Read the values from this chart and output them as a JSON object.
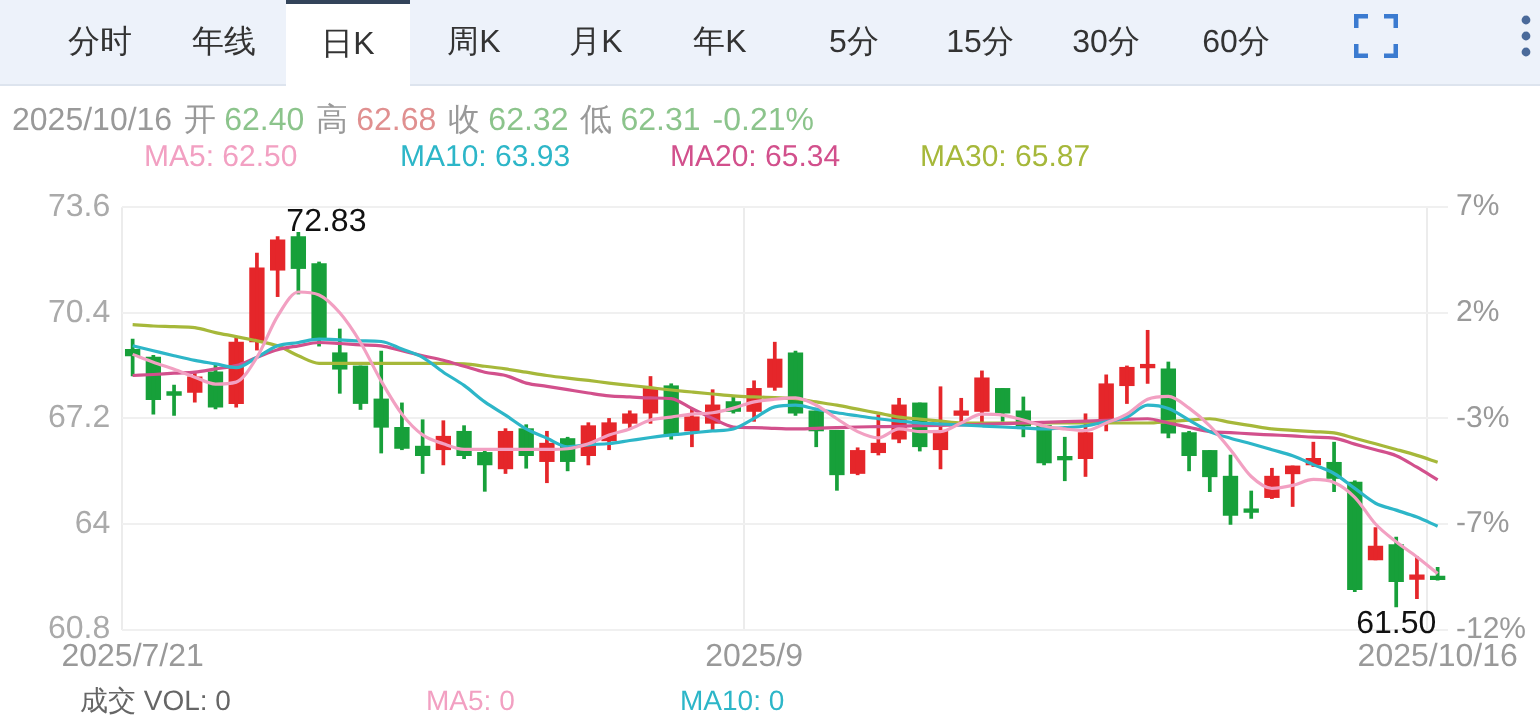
{
  "chart_data": {
    "type": "candlestick",
    "categories": [
      "2025/7/21",
      null,
      null,
      null,
      null,
      null,
      null,
      null,
      null,
      null,
      null,
      null,
      null,
      null,
      null,
      null,
      null,
      null,
      null,
      null,
      null,
      null,
      null,
      null,
      null,
      null,
      null,
      null,
      null,
      null,
      "2025/9",
      null,
      null,
      null,
      null,
      null,
      null,
      null,
      null,
      null,
      null,
      null,
      null,
      null,
      null,
      null,
      null,
      null,
      null,
      null,
      null,
      null,
      null,
      null,
      null,
      null,
      null,
      null,
      null,
      null,
      null,
      null,
      null,
      "2025/10/16"
    ],
    "ohlc": [
      [
        69.28,
        69.59,
        68.5,
        69.1
      ],
      [
        69.05,
        69.1,
        67.34,
        67.78
      ],
      [
        68.0,
        68.2,
        67.3,
        67.91
      ],
      [
        68.0,
        68.6,
        67.7,
        68.45
      ],
      [
        68.6,
        68.86,
        67.5,
        67.55
      ],
      [
        67.66,
        69.64,
        67.55,
        69.5
      ],
      [
        69.53,
        72.2,
        69.28,
        71.75
      ],
      [
        71.7,
        72.7,
        70.9,
        72.6
      ],
      [
        72.7,
        72.83,
        70.98,
        71.75
      ],
      [
        71.88,
        71.93,
        69.4,
        69.6
      ],
      [
        69.18,
        69.9,
        67.97,
        68.7
      ],
      [
        68.78,
        68.78,
        67.48,
        67.66
      ],
      [
        67.78,
        69.23,
        66.16,
        66.94
      ],
      [
        66.92,
        67.66,
        66.26,
        66.3
      ],
      [
        66.35,
        67.15,
        65.54,
        66.08
      ],
      [
        66.26,
        67.12,
        65.8,
        66.65
      ],
      [
        66.8,
        66.97,
        65.99,
        66.08
      ],
      [
        66.16,
        66.22,
        65.0,
        65.8
      ],
      [
        65.68,
        66.88,
        65.54,
        66.8
      ],
      [
        66.88,
        67.0,
        65.7,
        66.08
      ],
      [
        65.9,
        66.8,
        65.26,
        66.44
      ],
      [
        66.58,
        66.62,
        65.62,
        65.9
      ],
      [
        66.08,
        67.06,
        65.8,
        66.97
      ],
      [
        66.53,
        67.19,
        66.26,
        67.06
      ],
      [
        67.06,
        67.42,
        66.88,
        67.33
      ],
      [
        67.37,
        68.46,
        67.06,
        68.1
      ],
      [
        68.18,
        68.24,
        66.58,
        66.7
      ],
      [
        66.83,
        67.48,
        66.35,
        67.24
      ],
      [
        67.06,
        68.06,
        66.83,
        67.6
      ],
      [
        67.7,
        67.88,
        67.37,
        67.42
      ],
      [
        67.42,
        68.33,
        67.12,
        68.1
      ],
      [
        68.15,
        69.5,
        68.06,
        68.99
      ],
      [
        69.18,
        69.23,
        67.3,
        67.37
      ],
      [
        67.42,
        67.42,
        66.35,
        66.83
      ],
      [
        66.83,
        66.83,
        65.03,
        65.5
      ],
      [
        65.54,
        66.3,
        65.5,
        66.22
      ],
      [
        66.17,
        67.3,
        66.1,
        66.44
      ],
      [
        66.58,
        67.8,
        66.47,
        67.6
      ],
      [
        67.66,
        67.66,
        66.22,
        66.35
      ],
      [
        66.26,
        68.15,
        65.68,
        66.83
      ],
      [
        67.3,
        67.8,
        67.06,
        67.42
      ],
      [
        67.42,
        68.63,
        66.98,
        68.42
      ],
      [
        68.1,
        68.1,
        67.12,
        67.37
      ],
      [
        67.42,
        67.84,
        66.65,
        66.98
      ],
      [
        66.98,
        66.98,
        65.8,
        65.86
      ],
      [
        66.04,
        66.62,
        65.32,
        65.95
      ],
      [
        65.99,
        67.33,
        65.45,
        66.76
      ],
      [
        67.06,
        68.51,
        66.83,
        68.24
      ],
      [
        68.2,
        68.78,
        67.66,
        68.74
      ],
      [
        68.74,
        69.86,
        68.27,
        68.8
      ],
      [
        68.69,
        68.9,
        66.62,
        66.76
      ],
      [
        66.76,
        66.8,
        65.62,
        66.08
      ],
      [
        66.22,
        66.22,
        64.99,
        65.44
      ],
      [
        65.44,
        66.08,
        64.0,
        64.27
      ],
      [
        64.45,
        64.99,
        64.18,
        64.36
      ],
      [
        64.81,
        65.68,
        64.78,
        65.44
      ],
      [
        65.53,
        65.75,
        64.54,
        65.75
      ],
      [
        65.8,
        66.47,
        65.75,
        65.98
      ],
      [
        65.86,
        66.47,
        64.99,
        65.39
      ],
      [
        65.26,
        65.3,
        61.96,
        62.02
      ],
      [
        62.92,
        63.88,
        62.92,
        63.32
      ],
      [
        63.37,
        63.59,
        61.5,
        62.26
      ],
      [
        62.33,
        63.0,
        61.75,
        62.45
      ],
      [
        62.4,
        62.68,
        62.31,
        62.32
      ]
    ],
    "colors": [
      "#17a03a",
      "#17a03a",
      "#17a03a",
      "#e5262a",
      "#17a03a",
      "#e5262a",
      "#e5262a",
      "#e5262a",
      "#17a03a",
      "#17a03a",
      "#17a03a",
      "#17a03a",
      "#17a03a",
      "#17a03a",
      "#17a03a",
      "#e5262a",
      "#17a03a",
      "#17a03a",
      "#e5262a",
      "#17a03a",
      "#e5262a",
      "#17a03a",
      "#e5262a",
      "#e5262a",
      "#e5262a",
      "#e5262a",
      "#17a03a",
      "#e5262a",
      "#e5262a",
      "#17a03a",
      "#e5262a",
      "#e5262a",
      "#17a03a",
      "#17a03a",
      "#17a03a",
      "#e5262a",
      "#e5262a",
      "#e5262a",
      "#17a03a",
      "#e5262a",
      "#e5262a",
      "#e5262a",
      "#17a03a",
      "#17a03a",
      "#17a03a",
      "#17a03a",
      "#e5262a",
      "#e5262a",
      "#e5262a",
      "#e5262a",
      "#17a03a",
      "#17a03a",
      "#17a03a",
      "#17a03a",
      "#17a03a",
      "#e5262a",
      "#e5262a",
      "#e5262a",
      "#17a03a",
      "#17a03a",
      "#e5262a",
      "#17a03a",
      "#e5262a",
      "#17a03a"
    ],
    "series": [
      {
        "type": "line",
        "name": "MA5: 62.50",
        "color": "#f2a0c2",
        "values": [
          69.14,
          68.9,
          68.69,
          68.45,
          68.24,
          68.3,
          69.05,
          70.3,
          71.03,
          70.94,
          70.4,
          69.5,
          68.33,
          67.33,
          66.7,
          66.43,
          66.26,
          66.26,
          66.26,
          66.26,
          66.26,
          66.28,
          66.43,
          66.7,
          66.88,
          67.15,
          67.24,
          67.33,
          67.37,
          67.51,
          67.7,
          67.78,
          67.82,
          67.6,
          67.19,
          66.8,
          66.61,
          66.88,
          66.8,
          66.8,
          67.06,
          67.33,
          67.3,
          67.15,
          66.97,
          66.88,
          66.83,
          67.06,
          67.33,
          67.78,
          67.87,
          67.51,
          66.97,
          66.25,
          65.44,
          65.08,
          65.17,
          65.35,
          65.26,
          64.81,
          64.0,
          63.46,
          63.0,
          62.5
        ]
      },
      {
        "type": "line",
        "name": "MA10: 63.93",
        "color": "#2db6c8",
        "values": [
          69.4,
          69.25,
          69.1,
          68.96,
          68.85,
          68.74,
          69.05,
          69.4,
          69.5,
          69.6,
          69.58,
          69.55,
          69.53,
          69.3,
          69.05,
          68.6,
          68.2,
          67.7,
          67.3,
          66.88,
          66.6,
          66.34,
          66.4,
          66.44,
          66.53,
          66.62,
          66.7,
          66.76,
          66.82,
          66.88,
          67.2,
          67.55,
          67.6,
          67.48,
          67.37,
          67.28,
          67.19,
          67.12,
          67.06,
          67.03,
          67.0,
          66.97,
          66.94,
          66.91,
          66.88,
          66.92,
          66.97,
          67.1,
          67.24,
          67.6,
          67.5,
          67.15,
          66.8,
          66.6,
          66.43,
          66.25,
          66.07,
          65.8,
          65.53,
          65.08,
          64.63,
          64.42,
          64.21,
          63.93
        ]
      },
      {
        "type": "line",
        "name": "MA20: 65.34",
        "color": "#d2508c",
        "values": [
          68.5,
          68.53,
          68.57,
          68.6,
          68.7,
          68.8,
          69.05,
          69.28,
          69.4,
          69.5,
          69.47,
          69.43,
          69.4,
          69.25,
          69.1,
          68.96,
          68.78,
          68.6,
          68.5,
          68.27,
          68.17,
          68.07,
          67.97,
          67.88,
          67.85,
          67.82,
          67.8,
          67.5,
          67.2,
          66.94,
          66.92,
          66.9,
          66.88,
          66.9,
          66.92,
          66.94,
          66.95,
          66.96,
          66.98,
          66.99,
          67.0,
          67.02,
          67.04,
          67.06,
          67.08,
          67.1,
          67.12,
          67.14,
          67.17,
          67.19,
          67.06,
          66.93,
          66.8,
          66.77,
          66.73,
          66.7,
          66.67,
          66.63,
          66.6,
          66.42,
          66.25,
          66.07,
          65.72,
          65.34
        ]
      },
      {
        "type": "line",
        "name": "MA30: 65.87",
        "color": "#a6b83a",
        "values": [
          70.04,
          70.0,
          69.98,
          69.95,
          69.8,
          69.68,
          69.55,
          69.4,
          69.1,
          68.87,
          68.87,
          68.87,
          68.87,
          68.87,
          68.87,
          68.87,
          68.85,
          68.78,
          68.7,
          68.6,
          68.5,
          68.42,
          68.35,
          68.27,
          68.2,
          68.13,
          68.06,
          68.0,
          67.94,
          67.88,
          67.85,
          67.83,
          67.8,
          67.7,
          67.6,
          67.48,
          67.36,
          67.24,
          67.18,
          67.12,
          67.06,
          67.06,
          67.06,
          67.06,
          67.06,
          67.06,
          67.06,
          67.06,
          67.06,
          67.06,
          67.1,
          67.15,
          67.19,
          67.08,
          66.98,
          66.88,
          66.84,
          66.8,
          66.76,
          66.6,
          66.43,
          66.26,
          66.08,
          65.87
        ]
      }
    ],
    "ylim": [
      60.8,
      73.6
    ],
    "yticks": [
      60.8,
      64,
      67.2,
      70.4,
      73.6
    ],
    "y2lim": [
      -11.88,
      6.67
    ],
    "y2ticks": [
      {
        "value": -11.88,
        "label": "-12%"
      },
      {
        "value": -7.25,
        "label": "-7%"
      },
      {
        "value": -2.61,
        "label": "-3%"
      },
      {
        "value": 2.03,
        "label": "2%"
      },
      {
        "value": 6.67,
        "label": "7%"
      }
    ],
    "grid": true,
    "legend": "top left",
    "annotations": [
      "分时",
      "年线",
      "日K",
      "周K",
      "月K",
      "年K",
      "5分",
      "15分",
      "30分",
      "60分",
      "2025/10/16",
      "开",
      "62.40",
      "高",
      "62.68",
      "收",
      "62.32",
      "低",
      "62.31",
      "-0.21%",
      "72.83",
      "61.50",
      "成交 VOL: 0",
      "MA5: 0",
      "MA10: 0"
    ]
  }
}
